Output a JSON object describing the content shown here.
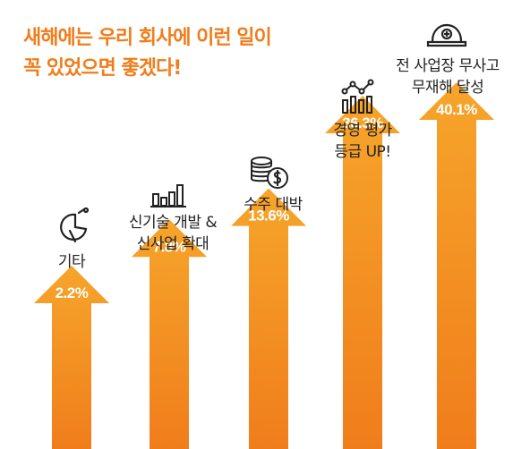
{
  "chart_data": {
    "type": "bar",
    "title": [
      "새해에는 우리 회사에 이런 일이",
      "꼭 있었으면 좋겠다!"
    ],
    "categories": [
      [
        "기타"
      ],
      [
        "신기술 개발 &",
        "신사업 확대"
      ],
      [
        "수주 대박"
      ],
      [
        "경영 평가",
        "등급 UP!"
      ],
      [
        "전 사업장 무사고",
        "무재해 달성"
      ]
    ],
    "values": [
      2.2,
      7.8,
      13.6,
      36.3,
      40.1
    ],
    "value_labels": [
      "2.2%",
      "7.8%",
      "13.6%",
      "36.3%",
      "40.1%"
    ],
    "icons": [
      "pie-chart-icon",
      "bar-chart-icon",
      "coins-icon",
      "line-chart-icon",
      "safety-helmet-icon"
    ],
    "colors": {
      "title": "#f07d1b",
      "arrow_top": "#f6a52b",
      "arrow_bottom": "#f07d1b",
      "icon": "#222222"
    }
  }
}
